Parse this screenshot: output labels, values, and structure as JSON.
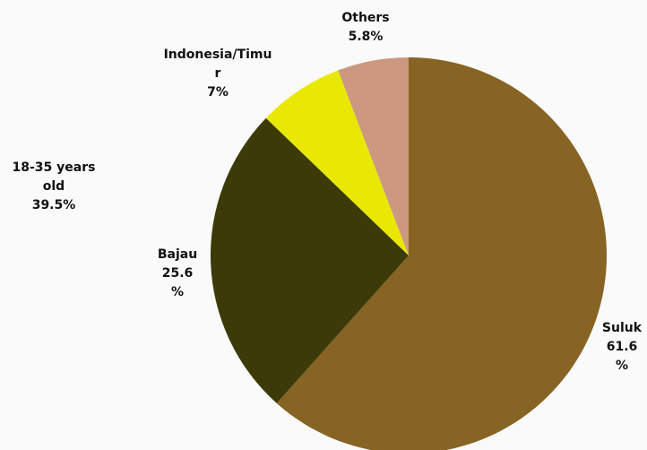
{
  "chart_data": {
    "type": "pie",
    "slices": [
      {
        "label": "Suluk",
        "value": 61.6,
        "label_text": "Suluk\n61.6\n%",
        "color": "#876423"
      },
      {
        "label": "Bajau",
        "value": 25.6,
        "label_text": "Bajau\n25.6\n%",
        "color": "#3c3a08"
      },
      {
        "label": "Indonesia/Timur",
        "value": 7,
        "label_text": "Indonesia/Timu\nr\n7%",
        "color": "#e8e804"
      },
      {
        "label": "Others",
        "value": 5.8,
        "label_text": "Others\n5.8%",
        "color": "#cd9880"
      }
    ],
    "side_annotation": "18-35 years\nold\n39.5%",
    "start_angle_deg": 0,
    "direction": "clockwise"
  }
}
